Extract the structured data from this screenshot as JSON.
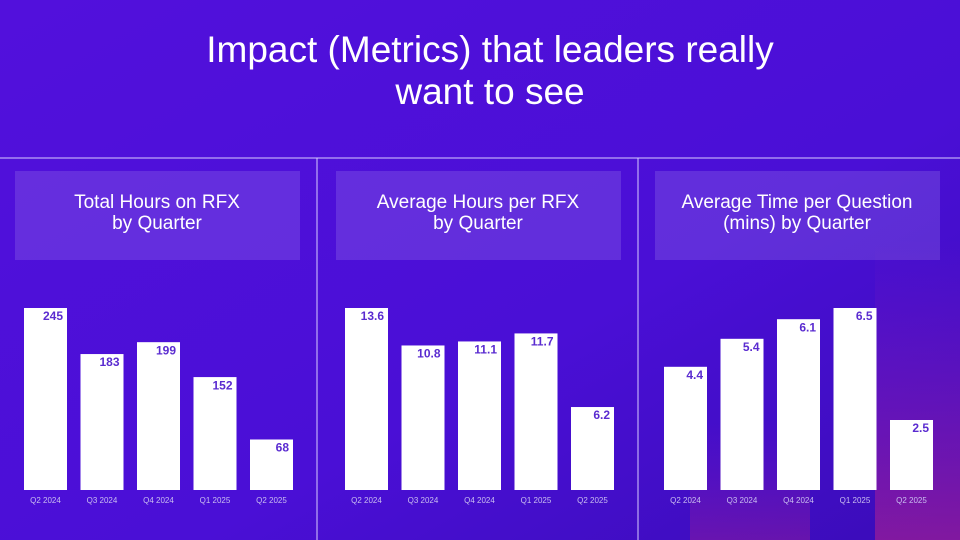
{
  "header": {
    "title": [
      "Impact (Metrics) that leaders really",
      "want to see"
    ]
  },
  "chart_data": [
    {
      "type": "bar",
      "title": [
        "Total Hours on RFX",
        "by Quarter"
      ],
      "categories": [
        "Q2 2024",
        "Q3 2024",
        "Q4 2024",
        "Q1 2025",
        "Q2 2025"
      ],
      "values": [
        245,
        183,
        199,
        152,
        68
      ],
      "color": "#ffffff"
    },
    {
      "type": "bar",
      "title": [
        "Average Hours per RFX",
        "by Quarter"
      ],
      "categories": [
        "Q2 2024",
        "Q3 2024",
        "Q4 2024",
        "Q1 2025",
        "Q2 2025"
      ],
      "values": [
        13.6,
        10.8,
        11.1,
        11.7,
        6.2
      ],
      "color": "#ffffff"
    },
    {
      "type": "bar",
      "title": [
        "Average Time per Question",
        "(mins) by Quarter"
      ],
      "categories": [
        "Q2 2024",
        "Q3 2024",
        "Q4 2024",
        "Q1 2025",
        "Q2 2025"
      ],
      "values": [
        4.4,
        5.4,
        6.1,
        6.5,
        2.5
      ],
      "color": "#ffffff"
    }
  ]
}
